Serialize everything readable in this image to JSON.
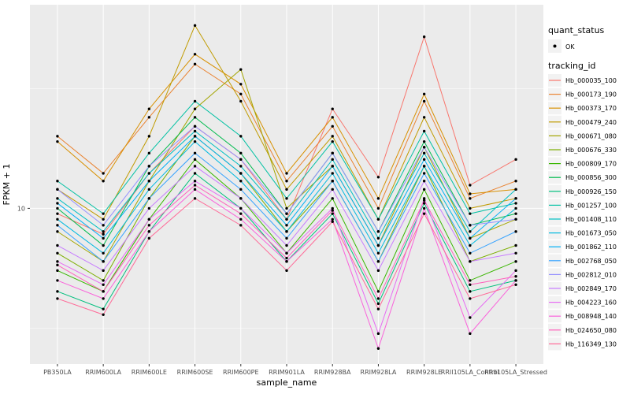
{
  "chart_data": {
    "type": "line",
    "title": "",
    "xlabel": "sample_name",
    "ylabel": "FPKM + 1",
    "y_scale": "log10",
    "y_major_ticks": [
      10
    ],
    "y_tick_labels": [
      "10"
    ],
    "y_minor_ticks": [
      3.162,
      31.623
    ],
    "ylim_log10": [
      0.35,
      1.85
    ],
    "grid": true,
    "legend_position": "right",
    "categories": [
      "PB350LA",
      "RRIM600LA",
      "RRIM600LE",
      "RRIM600SE",
      "RRIM600PE",
      "RRIM901LA",
      "RRIM928BA",
      "RRIM928LA",
      "RRIM928LE",
      "RRII105LA_Control",
      "RRII105LA_Stressed"
    ],
    "series": [
      {
        "name": "Hb_000035_100",
        "color": "#F8766D",
        "values": [
          9.5,
          7.8,
          14.0,
          22.0,
          16.0,
          9.0,
          26.0,
          13.5,
          52.0,
          12.5,
          16.0
        ]
      },
      {
        "name": "Hb_000173_190",
        "color": "#EA8331",
        "values": [
          20.0,
          14.0,
          24.0,
          40.0,
          30.0,
          13.0,
          22.0,
          10.0,
          28.0,
          11.0,
          13.0
        ]
      },
      {
        "name": "Hb_000373_170",
        "color": "#D89000",
        "values": [
          19.0,
          13.0,
          26.0,
          44.0,
          33.0,
          14.0,
          24.0,
          11.0,
          30.0,
          11.5,
          12.0
        ]
      },
      {
        "name": "Hb_000479_240",
        "color": "#C09B00",
        "values": [
          12.0,
          9.0,
          20.0,
          58.0,
          28.0,
          12.0,
          20.0,
          9.0,
          24.0,
          10.0,
          11.0
        ]
      },
      {
        "name": "Hb_000671_080",
        "color": "#A3A500",
        "values": [
          8.0,
          6.0,
          13.0,
          26.0,
          38.0,
          10.0,
          15.0,
          7.0,
          18.0,
          7.5,
          9.0
        ]
      },
      {
        "name": "Hb_000676_330",
        "color": "#7CAE00",
        "values": [
          6.5,
          5.0,
          11.0,
          20.0,
          14.0,
          8.0,
          13.0,
          6.0,
          15.0,
          6.0,
          7.0
        ]
      },
      {
        "name": "Hb_000809_170",
        "color": "#39B600",
        "values": [
          5.5,
          4.5,
          9.0,
          16.0,
          11.0,
          6.5,
          11.0,
          4.5,
          12.0,
          5.0,
          6.0
        ]
      },
      {
        "name": "Hb_000856_300",
        "color": "#00BB4E",
        "values": [
          10.0,
          7.0,
          15.0,
          24.0,
          17.0,
          9.5,
          17.0,
          8.0,
          19.0,
          8.5,
          9.5
        ]
      },
      {
        "name": "Hb_000926_150",
        "color": "#00BF7D",
        "values": [
          4.5,
          3.8,
          8.0,
          14.0,
          10.0,
          6.0,
          9.5,
          4.0,
          10.5,
          4.5,
          5.0
        ]
      },
      {
        "name": "Hb_001257_100",
        "color": "#00C1A3",
        "values": [
          13.0,
          9.5,
          17.0,
          28.0,
          20.0,
          11.0,
          19.0,
          9.0,
          21.0,
          9.5,
          10.5
        ]
      },
      {
        "name": "Hb_001408_110",
        "color": "#00BFC4",
        "values": [
          11.0,
          8.0,
          14.0,
          21.0,
          15.0,
          9.0,
          16.0,
          7.5,
          17.0,
          8.0,
          12.0
        ]
      },
      {
        "name": "Hb_001673_050",
        "color": "#00BAE0",
        "values": [
          9.0,
          6.5,
          12.0,
          19.0,
          13.0,
          8.0,
          14.0,
          6.5,
          15.0,
          7.0,
          10.0
        ]
      },
      {
        "name": "Hb_001862_110",
        "color": "#00B0F6",
        "values": [
          10.5,
          7.5,
          13.0,
          20.0,
          14.0,
          8.5,
          15.0,
          7.0,
          16.0,
          7.5,
          11.0
        ]
      },
      {
        "name": "Hb_002768_050",
        "color": "#35A2FF",
        "values": [
          8.5,
          6.0,
          11.0,
          17.0,
          12.0,
          7.5,
          13.0,
          6.0,
          14.0,
          6.5,
          8.0
        ]
      },
      {
        "name": "Hb_002812_010",
        "color": "#9590FF",
        "values": [
          12.0,
          8.5,
          15.0,
          22.0,
          16.0,
          9.5,
          17.0,
          8.0,
          18.0,
          8.5,
          9.0
        ]
      },
      {
        "name": "Hb_002849_170",
        "color": "#C77CFF",
        "values": [
          7.0,
          5.5,
          10.0,
          15.0,
          11.0,
          7.0,
          12.0,
          5.5,
          13.0,
          6.0,
          6.5
        ]
      },
      {
        "name": "Hb_004223_160",
        "color": "#E76BF3",
        "values": [
          6.0,
          4.8,
          9.0,
          13.0,
          10.0,
          6.5,
          10.0,
          3.0,
          11.0,
          3.5,
          5.5
        ]
      },
      {
        "name": "Hb_008948_140",
        "color": "#FA62DB",
        "values": [
          5.0,
          4.2,
          8.0,
          12.0,
          9.0,
          6.0,
          9.0,
          2.6,
          10.0,
          3.0,
          5.0
        ]
      },
      {
        "name": "Hb_024650_080",
        "color": "#FF62BC",
        "values": [
          5.8,
          4.5,
          8.5,
          12.5,
          9.5,
          6.2,
          9.8,
          4.2,
          10.8,
          4.8,
          5.2
        ]
      },
      {
        "name": "Hb_116349_130",
        "color": "#FF6A98",
        "values": [
          4.2,
          3.6,
          7.5,
          11.0,
          8.5,
          5.5,
          8.8,
          3.8,
          9.5,
          4.2,
          4.8
        ]
      }
    ],
    "style": {
      "panel_bg": "#EBEBEB",
      "grid_color": "#FFFFFF",
      "point_color": "#000000",
      "tick_color": "#333333",
      "tick_text_color": "#4D4D4D"
    }
  },
  "legend": {
    "key_bg": "#F2F2F2",
    "quant_status": {
      "title": "quant_status",
      "items": [
        {
          "label": "OK",
          "marker": "point",
          "color": "#000000"
        }
      ]
    },
    "tracking_id": {
      "title": "tracking_id"
    }
  }
}
